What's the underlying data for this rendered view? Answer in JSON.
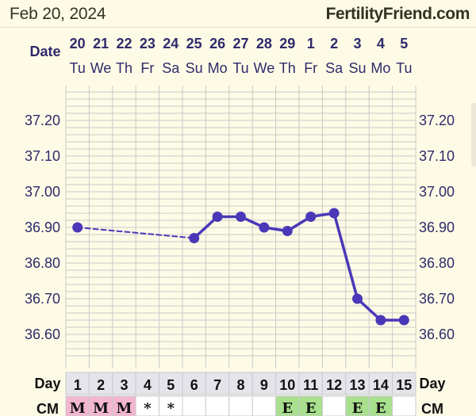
{
  "header": {
    "date": "Feb 20, 2024",
    "site": "FertilityFriend.com"
  },
  "colors": {
    "background": "#fdfbe6",
    "grid_line": "#c8c8c8",
    "series": "#4a38b8",
    "label_text": "#2f2a6b",
    "cm_m_fill": "#f3b6cf",
    "cm_e_fill": "#a9e08e",
    "day_cell": "#e4e4ea"
  },
  "chart_data": {
    "type": "line",
    "row_labels": {
      "date": "Date",
      "day": "Day",
      "cm": "CM"
    },
    "dates": [
      "20",
      "21",
      "22",
      "23",
      "24",
      "25",
      "26",
      "27",
      "28",
      "29",
      "1",
      "2",
      "3",
      "4",
      "5"
    ],
    "weekdays": [
      "Tu",
      "We",
      "Th",
      "Fr",
      "Sa",
      "Su",
      "Mo",
      "Tu",
      "We",
      "Th",
      "Fr",
      "Sa",
      "Su",
      "Mo",
      "Tu"
    ],
    "days": [
      "1",
      "2",
      "3",
      "4",
      "5",
      "6",
      "7",
      "8",
      "9",
      "10",
      "11",
      "12",
      "13",
      "14",
      "15"
    ],
    "cm": [
      "M",
      "M",
      "M",
      "*",
      "*",
      "",
      "",
      "",
      "",
      "E",
      "E",
      "",
      "E",
      "E",
      ""
    ],
    "y_ticks": [
      "37.20",
      "37.10",
      "37.00",
      "36.90",
      "36.80",
      "36.70",
      "36.60"
    ],
    "ylim": [
      36.55,
      37.29
    ],
    "series": [
      {
        "values": [
          36.9,
          null,
          null,
          null,
          null,
          36.87,
          36.93,
          36.93,
          36.9,
          36.89,
          36.93,
          36.94,
          36.7,
          36.64,
          36.64
        ]
      }
    ],
    "dashed_segments": [
      [
        1,
        6
      ]
    ]
  }
}
